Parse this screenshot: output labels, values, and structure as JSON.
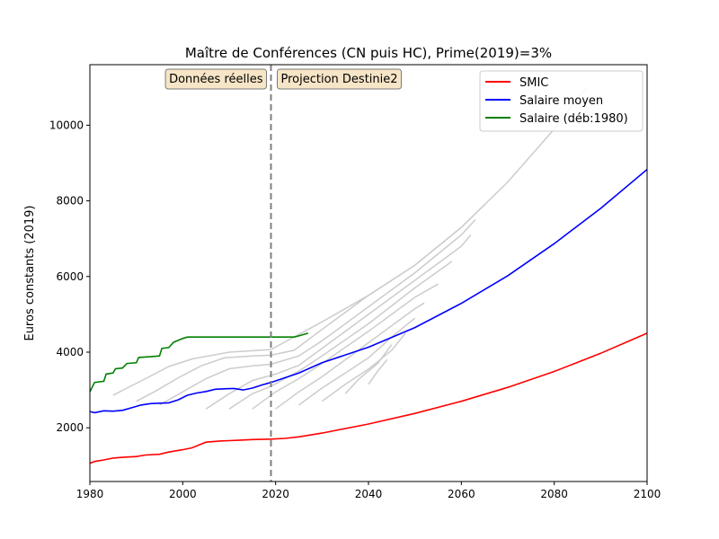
{
  "chart_data": {
    "type": "line",
    "title": "Maître de Conférences (CN puis HC), Prime(2019)=3%",
    "xlabel": "",
    "ylabel": "Euros constants (2019)",
    "xlim": [
      1980,
      2100
    ],
    "ylim": [
      580,
      11600
    ],
    "xticks": [
      1980,
      2000,
      2020,
      2040,
      2060,
      2080,
      2100
    ],
    "yticks": [
      2000,
      4000,
      6000,
      8000,
      10000
    ],
    "vline": {
      "x": 2019,
      "style": "dashed",
      "color": "#808080"
    },
    "annotations": [
      {
        "text": "Données réelles",
        "x": 2019,
        "side": "left"
      },
      {
        "text": "Projection Destinie2",
        "x": 2019,
        "side": "right"
      }
    ],
    "legend": {
      "placement": "top-right"
    },
    "series": [
      {
        "name": "SMIC",
        "color": "#ff0000",
        "points": [
          [
            1980,
            1060
          ],
          [
            1981,
            1110
          ],
          [
            1983,
            1150
          ],
          [
            1985,
            1200
          ],
          [
            1987,
            1220
          ],
          [
            1990,
            1240
          ],
          [
            1992,
            1280
          ],
          [
            1995,
            1300
          ],
          [
            1997,
            1360
          ],
          [
            2000,
            1420
          ],
          [
            2002,
            1470
          ],
          [
            2004,
            1570
          ],
          [
            2005,
            1620
          ],
          [
            2008,
            1650
          ],
          [
            2010,
            1660
          ],
          [
            2012,
            1670
          ],
          [
            2015,
            1690
          ],
          [
            2019,
            1700
          ],
          [
            2022,
            1720
          ],
          [
            2025,
            1760
          ],
          [
            2030,
            1860
          ],
          [
            2040,
            2100
          ],
          [
            2050,
            2380
          ],
          [
            2060,
            2700
          ],
          [
            2070,
            3070
          ],
          [
            2080,
            3490
          ],
          [
            2090,
            3970
          ],
          [
            2100,
            4500
          ]
        ]
      },
      {
        "name": "Salaire moyen",
        "color": "#0000ff",
        "points": [
          [
            1980,
            2430
          ],
          [
            1981,
            2400
          ],
          [
            1983,
            2450
          ],
          [
            1985,
            2440
          ],
          [
            1987,
            2460
          ],
          [
            1989,
            2530
          ],
          [
            1991,
            2600
          ],
          [
            1993,
            2640
          ],
          [
            1995,
            2650
          ],
          [
            1997,
            2660
          ],
          [
            1999,
            2740
          ],
          [
            2001,
            2860
          ],
          [
            2003,
            2920
          ],
          [
            2005,
            2960
          ],
          [
            2007,
            3020
          ],
          [
            2009,
            3030
          ],
          [
            2011,
            3040
          ],
          [
            2013,
            3000
          ],
          [
            2015,
            3050
          ],
          [
            2017,
            3130
          ],
          [
            2019,
            3200
          ],
          [
            2025,
            3450
          ],
          [
            2030,
            3720
          ],
          [
            2040,
            4130
          ],
          [
            2050,
            4650
          ],
          [
            2060,
            5290
          ],
          [
            2070,
            6020
          ],
          [
            2080,
            6870
          ],
          [
            2090,
            7800
          ],
          [
            2100,
            8830
          ]
        ]
      },
      {
        "name": "Salaire (déb:1980)",
        "color": "#008000",
        "points": [
          [
            1980,
            2950
          ],
          [
            1981,
            3200
          ],
          [
            1983,
            3230
          ],
          [
            1983.5,
            3420
          ],
          [
            1985,
            3450
          ],
          [
            1985.5,
            3560
          ],
          [
            1987,
            3580
          ],
          [
            1988,
            3700
          ],
          [
            1990,
            3720
          ],
          [
            1990.5,
            3860
          ],
          [
            1993,
            3880
          ],
          [
            1995,
            3900
          ],
          [
            1995.5,
            4100
          ],
          [
            1997,
            4120
          ],
          [
            1998,
            4260
          ],
          [
            1999,
            4310
          ],
          [
            2000,
            4360
          ],
          [
            2001,
            4400
          ],
          [
            2003,
            4400
          ],
          [
            2010,
            4400
          ],
          [
            2015,
            4400
          ],
          [
            2020,
            4400
          ],
          [
            2024,
            4400
          ],
          [
            2025,
            4430
          ],
          [
            2027,
            4500
          ]
        ]
      }
    ],
    "background_series": [
      {
        "color": "#cccccc",
        "points": [
          [
            1985,
            2860
          ],
          [
            1988,
            3050
          ],
          [
            1992,
            3300
          ],
          [
            1997,
            3620
          ],
          [
            2002,
            3820
          ],
          [
            2010,
            4000
          ],
          [
            2019,
            4070
          ],
          [
            2030,
            4800
          ],
          [
            2040,
            5500
          ],
          [
            2050,
            6300
          ],
          [
            2060,
            7300
          ],
          [
            2070,
            8500
          ],
          [
            2080,
            9900
          ],
          [
            2087,
            11000
          ]
        ]
      },
      {
        "color": "#cccccc",
        "points": [
          [
            1990,
            2700
          ],
          [
            1994,
            2960
          ],
          [
            1999,
            3320
          ],
          [
            2004,
            3640
          ],
          [
            2009,
            3850
          ],
          [
            2015,
            3900
          ],
          [
            2019,
            3920
          ],
          [
            2024,
            4050
          ],
          [
            2030,
            4600
          ],
          [
            2040,
            5500
          ],
          [
            2050,
            6300
          ],
          [
            2060,
            7300
          ],
          [
            2065,
            7900
          ]
        ]
      },
      {
        "color": "#cccccc",
        "points": [
          [
            1995,
            2600
          ],
          [
            2000,
            2950
          ],
          [
            2005,
            3300
          ],
          [
            2010,
            3560
          ],
          [
            2015,
            3640
          ],
          [
            2019,
            3680
          ],
          [
            2025,
            3900
          ],
          [
            2030,
            4300
          ],
          [
            2040,
            5200
          ],
          [
            2050,
            6100
          ],
          [
            2060,
            7100
          ],
          [
            2063,
            7500
          ]
        ]
      },
      {
        "color": "#cccccc",
        "points": [
          [
            2005,
            2500
          ],
          [
            2010,
            2900
          ],
          [
            2015,
            3250
          ],
          [
            2020,
            3420
          ],
          [
            2025,
            3650
          ],
          [
            2030,
            4100
          ],
          [
            2040,
            5000
          ],
          [
            2050,
            5900
          ],
          [
            2060,
            6800
          ],
          [
            2062,
            7100
          ]
        ]
      },
      {
        "color": "#cccccc",
        "points": [
          [
            2010,
            2500
          ],
          [
            2015,
            2900
          ],
          [
            2019,
            3100
          ],
          [
            2025,
            3500
          ],
          [
            2030,
            3900
          ],
          [
            2040,
            4750
          ],
          [
            2050,
            5700
          ],
          [
            2058,
            6400
          ]
        ]
      },
      {
        "color": "#cccccc",
        "points": [
          [
            2015,
            2500
          ],
          [
            2020,
            2950
          ],
          [
            2025,
            3300
          ],
          [
            2030,
            3700
          ],
          [
            2040,
            4550
          ],
          [
            2050,
            5450
          ],
          [
            2055,
            5800
          ]
        ]
      },
      {
        "color": "#cccccc",
        "points": [
          [
            2020,
            2500
          ],
          [
            2025,
            2950
          ],
          [
            2030,
            3350
          ],
          [
            2040,
            4250
          ],
          [
            2050,
            5150
          ],
          [
            2052,
            5300
          ]
        ]
      },
      {
        "color": "#cccccc",
        "points": [
          [
            2025,
            2600
          ],
          [
            2030,
            3050
          ],
          [
            2035,
            3450
          ],
          [
            2040,
            3850
          ],
          [
            2045,
            4400
          ],
          [
            2050,
            4900
          ]
        ]
      },
      {
        "color": "#cccccc",
        "points": [
          [
            2030,
            2700
          ],
          [
            2035,
            3150
          ],
          [
            2040,
            3550
          ],
          [
            2045,
            4050
          ],
          [
            2048,
            4500
          ]
        ]
      },
      {
        "color": "#cccccc",
        "points": [
          [
            2035,
            2900
          ],
          [
            2038,
            3300
          ],
          [
            2042,
            3700
          ],
          [
            2045,
            4200
          ]
        ]
      },
      {
        "color": "#cccccc",
        "points": [
          [
            2040,
            3150
          ],
          [
            2042,
            3500
          ],
          [
            2044,
            3800
          ]
        ]
      }
    ]
  }
}
